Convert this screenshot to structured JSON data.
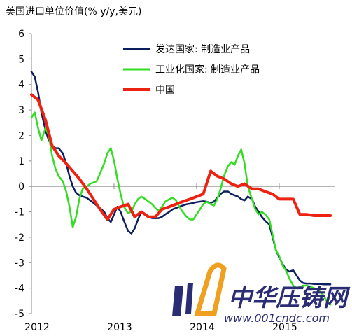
{
  "chart_data": {
    "type": "line",
    "title": "美国进口单位价值(% y/y,美元)",
    "xlabel": "",
    "ylabel": "",
    "ylim": [
      -5,
      6
    ],
    "yticks": [
      -5,
      -4,
      -3,
      -2,
      -1,
      0,
      1,
      2,
      3,
      4,
      5,
      6
    ],
    "xlim": [
      2012.0,
      2015.67
    ],
    "xticks": [
      {
        "value": 2012,
        "label": "2012"
      },
      {
        "value": 2013,
        "label": "2013"
      },
      {
        "value": 2014,
        "label": "2014"
      },
      {
        "value": 2015,
        "label": "2015"
      }
    ],
    "grid": false,
    "legend_position": "top-right",
    "series": [
      {
        "name": "发达国家: 制造业产品",
        "color": "#0d1f5c",
        "x": [
          2012.0,
          2012.04,
          2012.08,
          2012.12,
          2012.17,
          2012.21,
          2012.25,
          2012.29,
          2012.33,
          2012.38,
          2012.42,
          2012.46,
          2012.5,
          2012.54,
          2012.58,
          2012.62,
          2012.67,
          2012.71,
          2012.75,
          2012.79,
          2012.83,
          2012.88,
          2012.92,
          2012.96,
          2013.0,
          2013.04,
          2013.08,
          2013.12,
          2013.17,
          2013.21,
          2013.25,
          2013.29,
          2013.33,
          2013.38,
          2013.42,
          2013.46,
          2013.5,
          2013.54,
          2013.58,
          2013.62,
          2013.67,
          2013.71,
          2013.75,
          2013.79,
          2013.83,
          2013.88,
          2013.92,
          2013.96,
          2014.0,
          2014.04,
          2014.08,
          2014.12,
          2014.17,
          2014.21,
          2014.25,
          2014.29,
          2014.33,
          2014.38,
          2014.42,
          2014.46,
          2014.5,
          2014.54,
          2014.58,
          2014.62,
          2014.67,
          2014.71,
          2014.75,
          2014.79,
          2014.83,
          2014.88,
          2014.92,
          2014.96,
          2015.0,
          2015.04,
          2015.08,
          2015.12,
          2015.17,
          2015.21,
          2015.25,
          2015.29,
          2015.33,
          2015.38,
          2015.42,
          2015.46,
          2015.5,
          2015.54,
          2015.58,
          2015.62
        ],
        "values": [
          4.5,
          4.3,
          3.7,
          2.9,
          2.2,
          1.8,
          1.6,
          1.5,
          1.5,
          1.3,
          0.9,
          0.4,
          0.0,
          -0.25,
          -0.35,
          -0.4,
          -0.45,
          -0.55,
          -0.65,
          -0.75,
          -0.85,
          -1.0,
          -1.25,
          -1.4,
          -1.1,
          -0.8,
          -1.0,
          -1.35,
          -1.75,
          -1.85,
          -1.65,
          -1.3,
          -1.0,
          -1.1,
          -1.2,
          -1.25,
          -1.25,
          -1.25,
          -1.2,
          -1.1,
          -1.0,
          -0.9,
          -0.85,
          -0.8,
          -0.75,
          -0.7,
          -0.68,
          -0.65,
          -0.62,
          -0.6,
          -0.58,
          -0.6,
          -0.65,
          -0.6,
          -0.45,
          -0.3,
          -0.2,
          -0.2,
          -0.3,
          -0.35,
          -0.4,
          -0.5,
          -0.55,
          -0.4,
          -0.5,
          -0.8,
          -1.0,
          -1.2,
          -1.35,
          -1.5,
          -2.0,
          -2.5,
          -2.8,
          -3.05,
          -3.25,
          -3.35,
          -3.3,
          -3.5,
          -3.7,
          -3.8,
          -3.82,
          -3.82,
          -3.84,
          -3.84,
          -3.84,
          -3.85,
          -3.85,
          -3.85
        ]
      },
      {
        "name": "工业化国家: 制造业产品",
        "color": "#33dd22",
        "x": [
          2012.0,
          2012.04,
          2012.08,
          2012.12,
          2012.17,
          2012.21,
          2012.25,
          2012.29,
          2012.33,
          2012.38,
          2012.42,
          2012.46,
          2012.5,
          2012.54,
          2012.58,
          2012.62,
          2012.67,
          2012.71,
          2012.75,
          2012.79,
          2012.83,
          2012.88,
          2012.92,
          2012.96,
          2013.0,
          2013.04,
          2013.08,
          2013.12,
          2013.17,
          2013.21,
          2013.25,
          2013.29,
          2013.33,
          2013.38,
          2013.42,
          2013.46,
          2013.5,
          2013.54,
          2013.58,
          2013.62,
          2013.67,
          2013.71,
          2013.75,
          2013.79,
          2013.83,
          2013.88,
          2013.92,
          2013.96,
          2014.0,
          2014.04,
          2014.08,
          2014.12,
          2014.17,
          2014.21,
          2014.25,
          2014.29,
          2014.33,
          2014.38,
          2014.42,
          2014.46,
          2014.5,
          2014.54,
          2014.58,
          2014.62,
          2014.67,
          2014.71,
          2014.75,
          2014.79,
          2014.83,
          2014.88,
          2014.92,
          2014.96,
          2015.0,
          2015.04,
          2015.08,
          2015.12,
          2015.17,
          2015.21,
          2015.25,
          2015.29,
          2015.33,
          2015.38,
          2015.42,
          2015.46,
          2015.5,
          2015.54,
          2015.58,
          2015.62
        ],
        "values": [
          2.7,
          2.9,
          2.3,
          1.8,
          2.3,
          2.0,
          1.2,
          0.7,
          0.4,
          0.2,
          -0.2,
          -0.8,
          -1.6,
          -1.2,
          -0.5,
          -0.1,
          0.0,
          0.1,
          0.15,
          0.2,
          0.5,
          0.9,
          1.3,
          1.5,
          1.0,
          0.3,
          -0.3,
          -0.8,
          -1.05,
          -1.0,
          -0.7,
          -0.5,
          -0.4,
          -0.5,
          -0.6,
          -0.7,
          -0.85,
          -0.95,
          -0.8,
          -0.6,
          -0.5,
          -0.45,
          -0.55,
          -0.8,
          -1.0,
          -1.2,
          -1.3,
          -1.3,
          -1.1,
          -0.9,
          -0.7,
          -0.6,
          -0.7,
          -0.75,
          -0.5,
          -0.1,
          0.4,
          0.8,
          0.95,
          0.85,
          1.2,
          1.45,
          0.9,
          0.0,
          -0.5,
          -0.9,
          -1.1,
          -1.0,
          -1.1,
          -1.3,
          -1.9,
          -2.5,
          -2.75,
          -3.1,
          -3.3,
          -3.6,
          -3.9,
          -4.0,
          -3.95,
          -3.9,
          -3.9,
          -3.95,
          -4.0,
          -4.05,
          -4.15,
          -4.3,
          -4.55,
          -4.65
        ]
      },
      {
        "name": "中国",
        "color": "#ee2211",
        "x": [
          2012.0,
          2012.08,
          2012.17,
          2012.25,
          2012.33,
          2012.42,
          2012.5,
          2012.58,
          2012.67,
          2012.75,
          2012.83,
          2012.92,
          2013.0,
          2013.08,
          2013.17,
          2013.25,
          2013.33,
          2013.42,
          2013.5,
          2013.58,
          2013.67,
          2013.75,
          2013.83,
          2013.92,
          2014.0,
          2014.08,
          2014.17,
          2014.25,
          2014.33,
          2014.42,
          2014.5,
          2014.58,
          2014.67,
          2014.75,
          2014.83,
          2014.92,
          2015.0,
          2015.08,
          2015.17,
          2015.25,
          2015.33,
          2015.42,
          2015.5,
          2015.58,
          2015.62
        ],
        "values": [
          3.6,
          3.4,
          2.6,
          1.6,
          1.2,
          0.9,
          0.6,
          0.3,
          -0.1,
          -0.5,
          -0.9,
          -1.3,
          -0.9,
          -0.8,
          -0.7,
          -1.2,
          -1.0,
          -1.2,
          -1.2,
          -0.9,
          -0.8,
          -0.7,
          -0.6,
          -0.5,
          -0.4,
          -0.3,
          0.6,
          0.4,
          0.3,
          0.1,
          0.0,
          0.1,
          -0.1,
          -0.1,
          -0.2,
          -0.3,
          -0.5,
          -0.5,
          -0.5,
          -1.1,
          -1.1,
          -1.15,
          -1.15,
          -1.15,
          -1.15
        ]
      }
    ]
  },
  "watermark": {
    "brand": "中华压铸网",
    "url": "www.001cndc.com",
    "color": "#2a2d74",
    "accent": "#f0a020"
  }
}
